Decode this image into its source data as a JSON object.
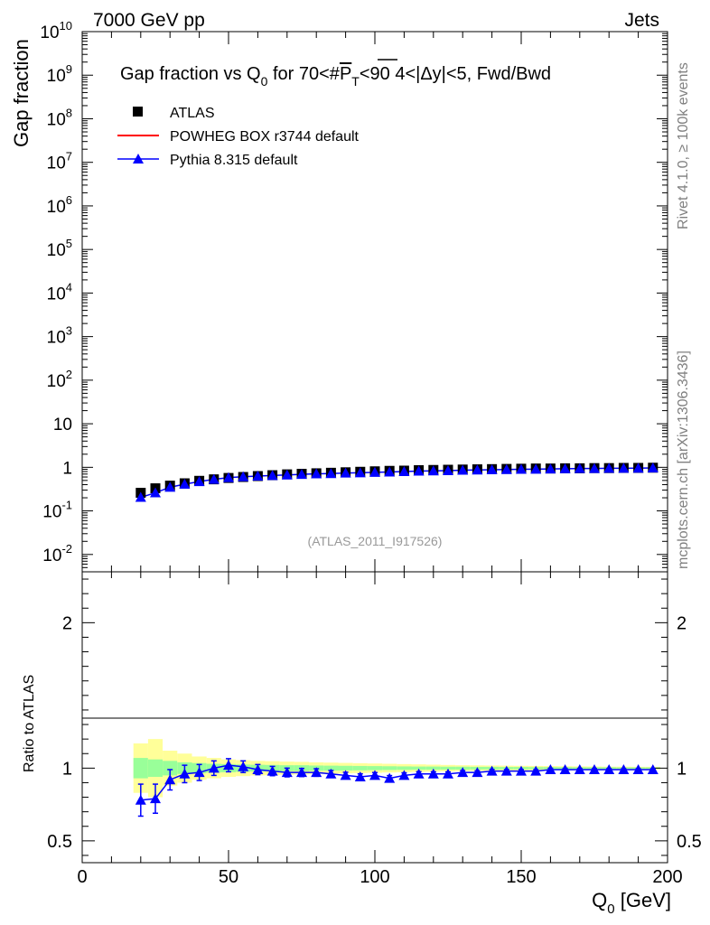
{
  "header": {
    "left": "7000 GeV pp",
    "right": "Jets"
  },
  "side_labels": {
    "rivet": "Rivet 4.1.0, ≥ 100k events",
    "mcplots": "mcplots.cern.ch [arXiv:1306.3436]"
  },
  "chart_data": {
    "type": "scatter",
    "title": "Gap fraction vs Q0 for 70<#PT<90  4<|Δy|<5, Fwd/Bwd",
    "title_parts": {
      "pre": "Gap fraction vs Q",
      "sub0": "0",
      "mid": " for 70<#",
      "p": "P",
      "subT": "T",
      "post": "<90  4<|Δy|<5, Fwd/Bwd"
    },
    "analysis_id": "(ATLAS_2011_I917526)",
    "xlabel": "Q0 [GeV]",
    "xlabel_parts": {
      "main": "Q",
      "sub": "0",
      "unit": " [GeV]"
    },
    "ylabel": "Gap fraction",
    "ratio_ylabel": "Ratio to ATLAS",
    "xlim": [
      0,
      200
    ],
    "ylim_log": [
      0.004,
      10000000000
    ],
    "ratio_ylim": [
      0.35,
      2.35
    ],
    "x_ticks": [
      "0",
      "50",
      "100",
      "150",
      "200"
    ],
    "y_ticks_main": [
      {
        "base": "10",
        "exp": "-2",
        "v": 0.01
      },
      {
        "base": "10",
        "exp": "-1",
        "v": 0.1
      },
      {
        "base": "1",
        "exp": "",
        "v": 1
      },
      {
        "base": "10",
        "exp": "",
        "v": 10
      },
      {
        "base": "10",
        "exp": "2",
        "v": 100
      },
      {
        "base": "10",
        "exp": "3",
        "v": 1000
      },
      {
        "base": "10",
        "exp": "4",
        "v": 10000
      },
      {
        "base": "10",
        "exp": "5",
        "v": 100000
      },
      {
        "base": "10",
        "exp": "6",
        "v": 1000000
      },
      {
        "base": "10",
        "exp": "7",
        "v": 10000000
      },
      {
        "base": "10",
        "exp": "8",
        "v": 100000000
      },
      {
        "base": "10",
        "exp": "9",
        "v": 1000000000
      },
      {
        "base": "10",
        "exp": "10",
        "v": 10000000000
      }
    ],
    "ratio_ticks": [
      {
        "label": "0.5",
        "v": 0.5
      },
      {
        "label": "1",
        "v": 1
      },
      {
        "label": "2",
        "v": 2
      }
    ],
    "legend": [
      {
        "name": "ATLAS",
        "marker": "square",
        "color": "#000000"
      },
      {
        "name": "POWHEG BOX r3744 default",
        "marker": "line",
        "color": "#ff0000"
      },
      {
        "name": "Pythia 8.315 default",
        "marker": "triangle",
        "color": "#0000ff"
      }
    ],
    "x": [
      20,
      25,
      30,
      35,
      40,
      45,
      50,
      55,
      60,
      65,
      70,
      75,
      80,
      85,
      90,
      95,
      100,
      105,
      110,
      115,
      120,
      125,
      130,
      135,
      140,
      145,
      150,
      155,
      160,
      165,
      170,
      175,
      180,
      185,
      190,
      195
    ],
    "series": [
      {
        "name": "ATLAS",
        "values": [
          0.26,
          0.33,
          0.38,
          0.43,
          0.49,
          0.53,
          0.57,
          0.6,
          0.63,
          0.66,
          0.69,
          0.71,
          0.73,
          0.75,
          0.77,
          0.79,
          0.81,
          0.83,
          0.84,
          0.86,
          0.87,
          0.88,
          0.89,
          0.9,
          0.91,
          0.92,
          0.93,
          0.94,
          0.94,
          0.95,
          0.95,
          0.96,
          0.96,
          0.97,
          0.97,
          0.98
        ],
        "band_inner": [
          0.07,
          0.06,
          0.05,
          0.04,
          0.035,
          0.03,
          0.028,
          0.025,
          0.023,
          0.022,
          0.02,
          0.02,
          0.018,
          0.017,
          0.016,
          0.015,
          0.014,
          0.013,
          0.012,
          0.011,
          0.011,
          0.01,
          0.01,
          0.009,
          0.009,
          0.008,
          0.008,
          0.007,
          0.007,
          0.007,
          0.006,
          0.006,
          0.006,
          0.005,
          0.005,
          0.005
        ],
        "band_outer": [
          0.17,
          0.2,
          0.12,
          0.1,
          0.08,
          0.07,
          0.06,
          0.055,
          0.05,
          0.048,
          0.045,
          0.043,
          0.04,
          0.038,
          0.036,
          0.034,
          0.032,
          0.03,
          0.028,
          0.026,
          0.024,
          0.022,
          0.02,
          0.019,
          0.018,
          0.017,
          0.016,
          0.015,
          0.014,
          0.013,
          0.012,
          0.011,
          0.01,
          0.01,
          0.009,
          0.009
        ]
      },
      {
        "name": "Pythia 8.315 default",
        "values": [
          0.205,
          0.26,
          0.35,
          0.41,
          0.47,
          0.53,
          0.58,
          0.61,
          0.63,
          0.65,
          0.67,
          0.69,
          0.71,
          0.72,
          0.74,
          0.75,
          0.77,
          0.78,
          0.8,
          0.82,
          0.83,
          0.84,
          0.86,
          0.87,
          0.88,
          0.89,
          0.9,
          0.91,
          0.92,
          0.93,
          0.94,
          0.94,
          0.95,
          0.95,
          0.96,
          0.97
        ],
        "ratio": [
          0.78,
          0.79,
          0.92,
          0.96,
          0.97,
          1.0,
          1.02,
          1.01,
          0.99,
          0.98,
          0.97,
          0.97,
          0.97,
          0.96,
          0.95,
          0.94,
          0.95,
          0.93,
          0.95,
          0.96,
          0.96,
          0.96,
          0.97,
          0.97,
          0.98,
          0.98,
          0.98,
          0.98,
          0.99,
          0.99,
          0.99,
          0.99,
          0.99,
          0.99,
          0.99,
          0.99
        ],
        "ratio_err": [
          0.11,
          0.1,
          0.07,
          0.06,
          0.055,
          0.05,
          0.045,
          0.04,
          0.035,
          0.032,
          0.03,
          0.028,
          0.026,
          0.024,
          0.022,
          0.021,
          0.02,
          0.019,
          0.018,
          0.016,
          0.015,
          0.014,
          0.013,
          0.012,
          0.011,
          0.01,
          0.01,
          0.009,
          0.009,
          0.008,
          0.008,
          0.007,
          0.007,
          0.006,
          0.006,
          0.006
        ]
      }
    ]
  }
}
